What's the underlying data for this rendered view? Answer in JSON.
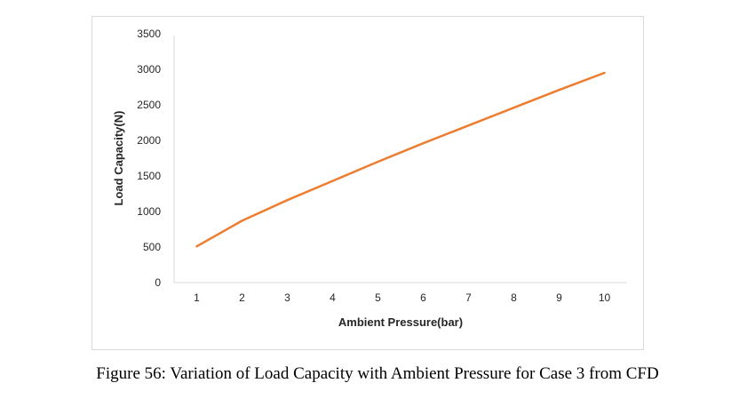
{
  "chart_data": {
    "type": "line",
    "xlabel": "Ambient Pressure(bar)",
    "ylabel": "Load Capacity(N)",
    "ylim": [
      0,
      3500
    ],
    "y_ticks": [
      0,
      500,
      1000,
      1500,
      2000,
      2500,
      3000,
      3500
    ],
    "x": [
      1,
      2,
      3,
      4,
      5,
      6,
      7,
      8,
      9,
      10
    ],
    "x_ticks": [
      "1",
      "2",
      "3",
      "4",
      "5",
      "6",
      "7",
      "8",
      "9",
      "10"
    ],
    "series": [
      {
        "values": [
          510,
          870,
          1160,
          1430,
          1700,
          1960,
          2210,
          2460,
          2710,
          2950
        ],
        "color": "#ed7d31"
      }
    ],
    "grid": false,
    "legend": "none"
  },
  "caption": "Figure 56: Variation of Load Capacity with Ambient Pressure for Case 3 from CFD"
}
